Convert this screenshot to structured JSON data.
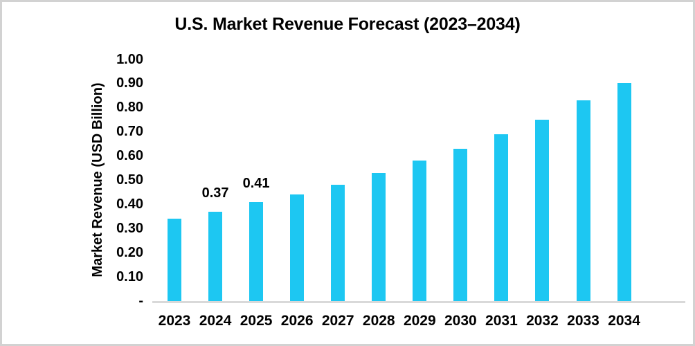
{
  "window": {
    "background": "#ffffff",
    "border_color": "#d2d2d2"
  },
  "chart_data": {
    "type": "bar",
    "title": "U.S. Market Revenue Forecast (2023–2034)",
    "ylabel": "Market Revenue (USD Billion)",
    "xlabel": "",
    "categories": [
      "2023",
      "2024",
      "2025",
      "2026",
      "2027",
      "2028",
      "2029",
      "2030",
      "2031",
      "2032",
      "2033",
      "2034"
    ],
    "values": [
      0.34,
      0.37,
      0.41,
      0.44,
      0.48,
      0.53,
      0.58,
      0.63,
      0.69,
      0.75,
      0.83,
      0.9
    ],
    "data_labels": [
      {
        "category": "2024",
        "text": "0.37"
      },
      {
        "category": "2025",
        "text": "0.41"
      }
    ],
    "ylim": [
      0,
      1.0
    ],
    "ytick_step": 0.1,
    "ytick_labels": [
      "-",
      "0.10",
      "0.20",
      "0.30",
      "0.40",
      "0.50",
      "0.60",
      "0.70",
      "0.80",
      "0.90",
      "1.00"
    ],
    "bar_color": "#1dc7f2",
    "axis_line_color": "#d9d9d9",
    "text_color": "#000000",
    "grid": "off",
    "legend": "none"
  }
}
